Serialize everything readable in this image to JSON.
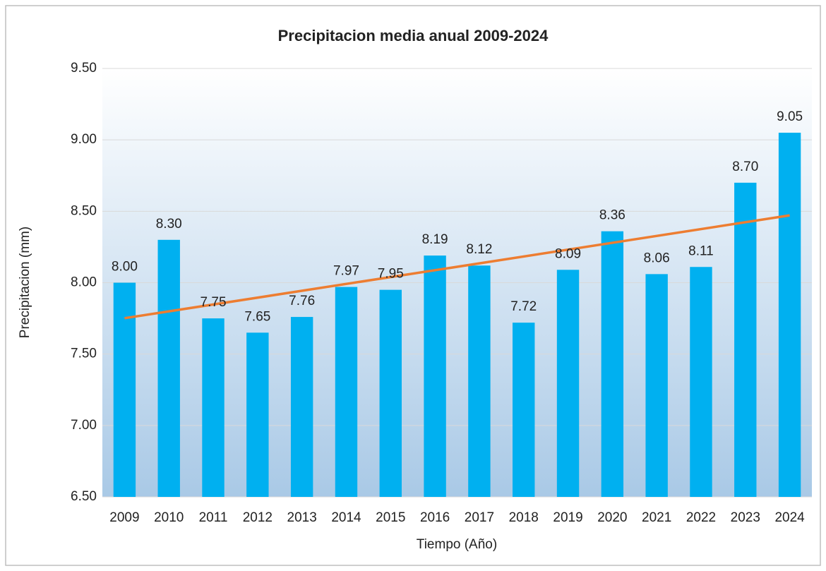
{
  "chart_data": {
    "type": "bar",
    "title": "Precipitacion media anual 2009-2024",
    "x_label": "Tiempo (Año)",
    "y_label": "Precipitacion (mm)",
    "categories": [
      "2009",
      "2010",
      "2011",
      "2012",
      "2013",
      "2014",
      "2015",
      "2016",
      "2017",
      "2018",
      "2019",
      "2020",
      "2021",
      "2022",
      "2023",
      "2024"
    ],
    "values": [
      8.0,
      8.3,
      7.75,
      7.65,
      7.76,
      7.97,
      7.95,
      8.19,
      8.12,
      7.72,
      8.09,
      8.36,
      8.06,
      8.11,
      8.7,
      9.05
    ],
    "value_labels": [
      "8.00",
      "8.30",
      "7.75",
      "7.65",
      "7.76",
      "7.97",
      "7.95",
      "8.19",
      "8.12",
      "7.72",
      "8.09",
      "8.36",
      "8.06",
      "8.11",
      "8.70",
      "9.05"
    ],
    "color": "#00b0f0",
    "trendline": {
      "type": "linear",
      "color": "#ed7d31"
    },
    "ylim": [
      6.5,
      9.5
    ],
    "yticks": [
      {
        "value": 6.5,
        "label": "6.50"
      },
      {
        "value": 7,
        "label": "7.00"
      },
      {
        "value": 7.5,
        "label": "7.50"
      },
      {
        "value": 8,
        "label": "8.00"
      },
      {
        "value": 8.5,
        "label": "8.50"
      },
      {
        "value": 9,
        "label": "9.00"
      },
      {
        "value": 9.5,
        "label": "9.50"
      }
    ],
    "grid": true
  }
}
